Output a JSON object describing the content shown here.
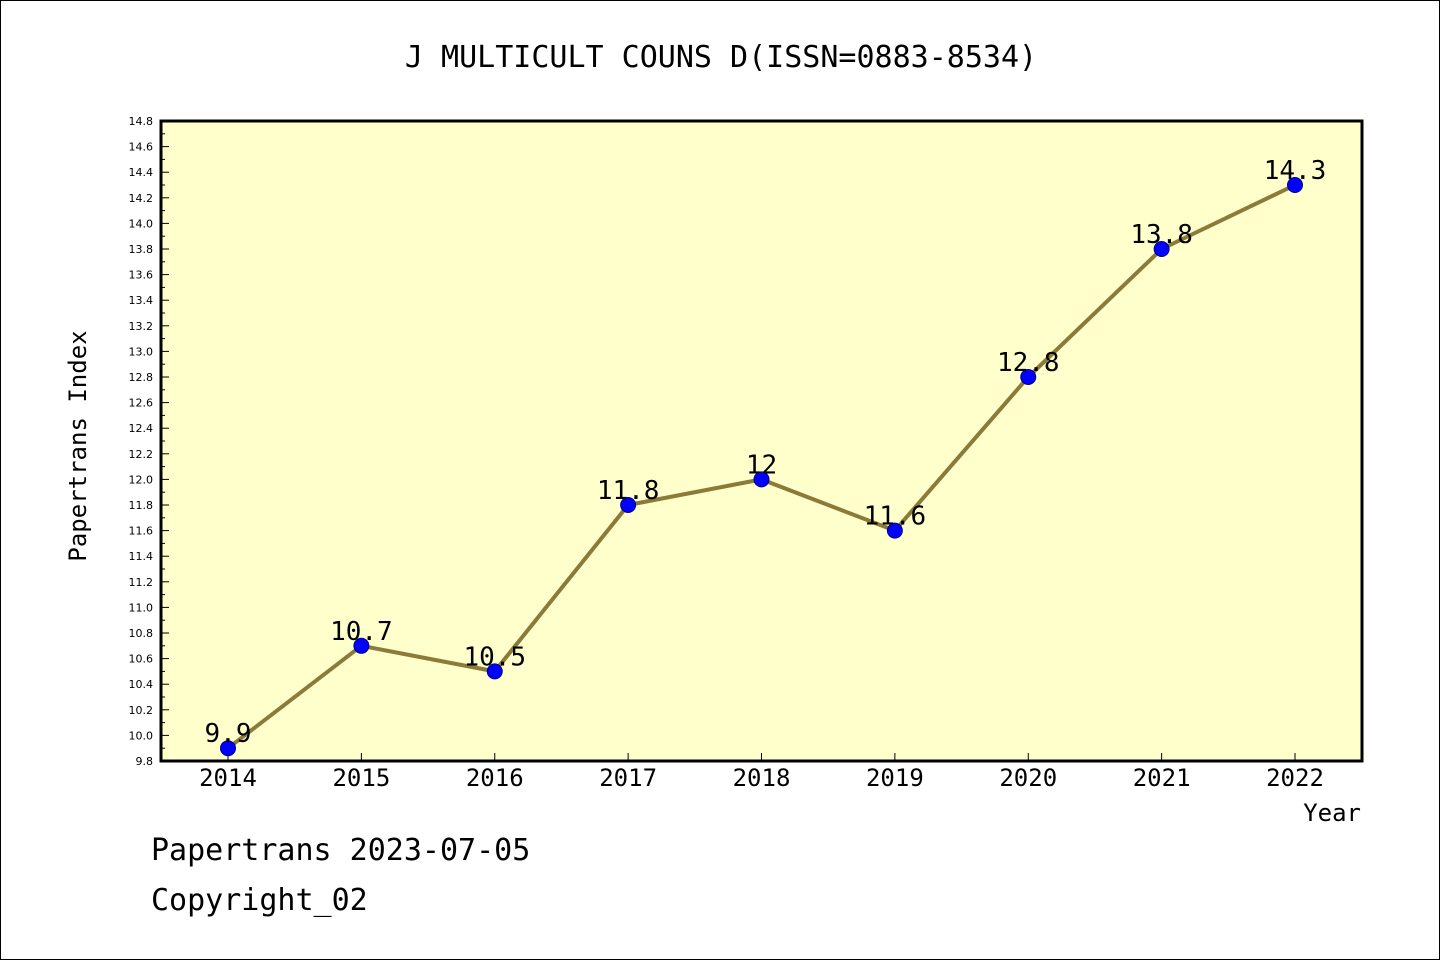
{
  "chart_data": {
    "type": "line",
    "title": "J MULTICULT COUNS D(ISSN=0883-8534)",
    "xlabel": "Year",
    "ylabel": "Papertrans Index",
    "x": [
      "2014",
      "2015",
      "2016",
      "2017",
      "2018",
      "2019",
      "2020",
      "2021",
      "2022"
    ],
    "values": [
      9.9,
      10.7,
      10.5,
      11.8,
      12,
      11.6,
      12.8,
      13.8,
      14.3
    ],
    "value_labels": [
      "9.9",
      "10.7",
      "10.5",
      "11.8",
      "12",
      "11.6",
      "12.8",
      "13.8",
      "14.3"
    ],
    "ylim": [
      9.8,
      14.8
    ],
    "yticks": [
      "9.8",
      "10.0",
      "10.2",
      "10.4",
      "10.6",
      "10.8",
      "11.0",
      "11.2",
      "11.4",
      "11.6",
      "11.8",
      "12.0",
      "12.2",
      "12.4",
      "12.6",
      "12.8",
      "13.0",
      "13.2",
      "13.4",
      "13.6",
      "13.8",
      "14.0",
      "14.2",
      "14.4",
      "14.6",
      "14.8"
    ],
    "grid": false,
    "colors": {
      "plot_background": "#ffffcc",
      "line": "#8c7a38",
      "marker": "#0000ff"
    }
  },
  "footer": {
    "line1": "Papertrans 2023-07-05",
    "line2": "Copyright_02"
  }
}
